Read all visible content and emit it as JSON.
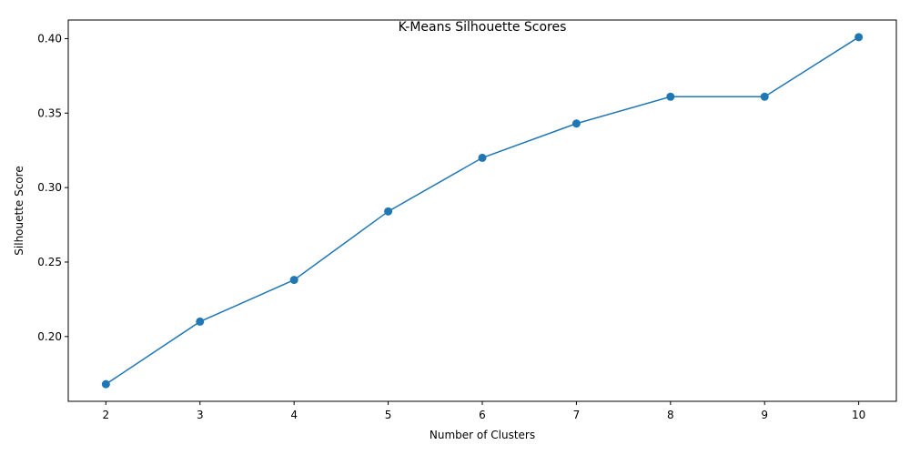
{
  "chart_data": {
    "type": "line",
    "title": "K-Means Silhouette Scores",
    "xlabel": "Number of Clusters",
    "ylabel": "Silhouette Score",
    "x": [
      2,
      3,
      4,
      5,
      6,
      7,
      8,
      9,
      10
    ],
    "series": [
      {
        "values": [
          0.168,
          0.21,
          0.238,
          0.284,
          0.32,
          0.343,
          0.361,
          0.361,
          0.401
        ],
        "color": "#1f77b4",
        "marker": "circle"
      }
    ],
    "xlim": [
      1.6,
      10.4
    ],
    "ylim": [
      0.1565,
      0.4125
    ],
    "xticks": [
      2,
      3,
      4,
      5,
      6,
      7,
      8,
      9,
      10
    ],
    "yticks": [
      0.2,
      0.25,
      0.3,
      0.35,
      0.4
    ],
    "ytick_labels": [
      "0.20",
      "0.25",
      "0.30",
      "0.35",
      "0.40"
    ],
    "grid": false,
    "legend": "none"
  }
}
